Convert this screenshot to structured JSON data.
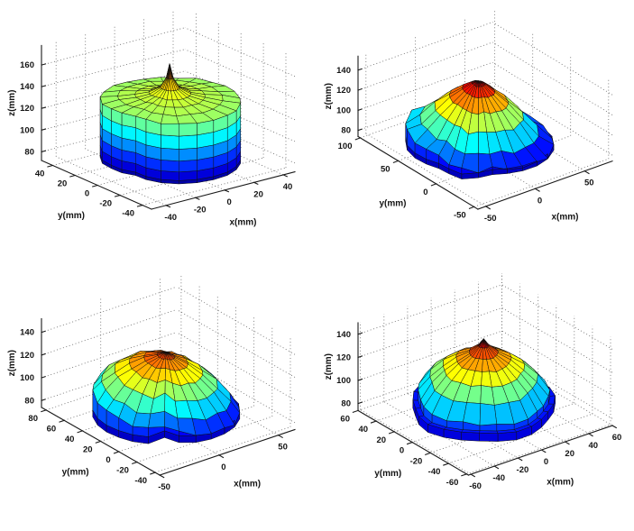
{
  "figure": {
    "background": "#ffffff",
    "grid": {
      "rows": 2,
      "cols": 2
    },
    "mesh_line_color": "#101010",
    "grid_line_color": "#6e6e6e",
    "axis_color": "#1a1a1a",
    "text_color": "#141414",
    "colormap_name": "jet"
  },
  "chart_data": [
    {
      "type": "surface3d",
      "position": "top-left",
      "title": "",
      "xlabel": "x(mm)",
      "ylabel": "y(mm)",
      "zlabel": "z(mm)",
      "xticks": [
        -40,
        -20,
        0,
        20,
        40
      ],
      "yticks": [
        40,
        20,
        0,
        -20,
        -40
      ],
      "zticks": [
        80,
        100,
        120,
        140,
        160
      ],
      "xlim": [
        -50,
        48
      ],
      "ylim": [
        -48,
        50
      ],
      "zlim": [
        72,
        178
      ],
      "view": {
        "azimuth": -37.5,
        "elevation": 30
      },
      "colormap": "jet",
      "color_range": [
        74,
        186
      ],
      "surface": {
        "shape": "tall cylindrical blob with central spike",
        "center": [
          0,
          1
        ],
        "radius": 38,
        "spokes": 24,
        "phase": 0,
        "radius_profile": [
          1.0,
          1.0,
          0.99,
          0.97,
          0.97,
          0.98,
          1.0,
          1.01,
          1.02,
          1.0,
          0.97,
          0.9,
          0.86,
          0.8,
          0.88,
          0.95,
          1.0,
          1.02,
          1.03,
          1.04,
          1.03,
          1.02,
          1.01,
          1.0
        ],
        "rings": [
          [
            0,
            166
          ],
          [
            0.05,
            153
          ],
          [
            0.14,
            144
          ],
          [
            0.3,
            139
          ],
          [
            0.5,
            136.5
          ],
          [
            0.75,
            134.5
          ],
          [
            1,
            132
          ]
        ],
        "tilt": [
          0,
          0
        ],
        "jitter": 0.7,
        "skirt": [
          [
            121,
            1
          ],
          [
            109,
            1
          ],
          [
            98,
            1
          ],
          [
            88,
            1
          ],
          [
            80,
            1
          ],
          [
            77,
            1
          ]
        ]
      }
    },
    {
      "type": "surface3d",
      "position": "top-right",
      "title": "",
      "xlabel": "x(mm)",
      "ylabel": "y(mm)",
      "zlabel": "z(mm)",
      "xticks": [
        -50,
        0,
        50
      ],
      "yticks": [
        100,
        50,
        0,
        -50
      ],
      "zticks": [
        80,
        100,
        120,
        140
      ],
      "xlim": [
        -58,
        78
      ],
      "ylim": [
        -55,
        103
      ],
      "zlim": [
        74,
        154
      ],
      "view": {
        "azimuth": -37.5,
        "elevation": 30
      },
      "colormap": "jet",
      "color_range": [
        76,
        152
      ],
      "surface": {
        "shape": "irregular flattened dome, red core offset toward back",
        "center": [
          0,
          20
        ],
        "radius": 56,
        "spokes": 24,
        "phase": 0.13,
        "radius_profile": [
          1.05,
          1.02,
          0.96,
          0.9,
          0.93,
          1.0,
          1.06,
          1.1,
          1.08,
          1.02,
          0.94,
          0.86,
          0.8,
          0.84,
          0.92,
          0.85,
          0.78,
          0.83,
          0.9,
          0.97,
          1.03,
          1.08,
          1.09,
          1.07
        ],
        "rings": [
          [
            0,
            147
          ],
          [
            0.09,
            144
          ],
          [
            0.22,
            137
          ],
          [
            0.4,
            127
          ],
          [
            0.6,
            114
          ],
          [
            0.8,
            99
          ],
          [
            1,
            89
          ]
        ],
        "tilt": [
          -3,
          8
        ],
        "jitter": 2.4,
        "skirt": [
          [
            83,
            1
          ],
          [
            78,
            1
          ]
        ]
      }
    },
    {
      "type": "surface3d",
      "position": "bottom-left",
      "title": "",
      "xlabel": "x(mm)",
      "ylabel": "y(mm)",
      "zlabel": "z(mm)",
      "xticks": [
        -50,
        0,
        50
      ],
      "yticks": [
        80,
        60,
        40,
        20,
        0,
        -20,
        -40
      ],
      "zticks": [
        80,
        100,
        120,
        140
      ],
      "xlim": [
        -50,
        64
      ],
      "ylim": [
        -45,
        85
      ],
      "zlim": [
        74,
        152
      ],
      "view": {
        "azimuth": -37.5,
        "elevation": 30
      },
      "colormap": "jet",
      "color_range": [
        76,
        148
      ],
      "surface": {
        "shape": "flat pancake tilted up at back with front cleft",
        "center": [
          2,
          16
        ],
        "radius": 48,
        "spokes": 24,
        "phase": 0.1,
        "radius_profile": [
          1.02,
          1.0,
          0.97,
          0.95,
          0.96,
          1.0,
          1.04,
          1.06,
          1.05,
          1.02,
          0.98,
          0.94,
          0.9,
          0.88,
          0.85,
          0.62,
          0.8,
          0.88,
          0.92,
          0.96,
          1.0,
          1.03,
          1.04,
          1.03
        ],
        "rings": [
          [
            0,
            136
          ],
          [
            0.12,
            132.5
          ],
          [
            0.3,
            128
          ],
          [
            0.5,
            121
          ],
          [
            0.7,
            112
          ],
          [
            0.88,
            101
          ],
          [
            1,
            91
          ]
        ],
        "tilt": [
          -5,
          8
        ],
        "jitter": 1.8,
        "skirt": [
          [
            84,
            1
          ],
          [
            78,
            1
          ]
        ]
      }
    },
    {
      "type": "surface3d",
      "position": "bottom-right",
      "title": "",
      "xlabel": "x(mm)",
      "ylabel": "y(mm)",
      "zlabel": "z(mm)",
      "xticks": [
        -60,
        -40,
        -20,
        0,
        20,
        40,
        60
      ],
      "yticks": [
        60,
        40,
        20,
        0,
        -20,
        -40,
        -60
      ],
      "zticks": [
        80,
        100,
        120,
        140
      ],
      "xlim": [
        -62,
        60
      ],
      "ylim": [
        -62,
        60
      ],
      "zlim": [
        74,
        150
      ],
      "view": {
        "azimuth": -37.5,
        "elevation": 30
      },
      "colormap": "jet",
      "color_range": [
        76,
        146
      ],
      "surface": {
        "shape": "rounded dome with stepped base skirt",
        "center": [
          0,
          2
        ],
        "radius": 45,
        "spokes": 24,
        "phase": 0.07,
        "radius_profile": [
          1.0,
          0.97,
          0.99,
          1.03,
          1.0,
          0.96,
          0.99,
          1.04,
          1.02,
          0.98,
          0.96,
          1.0,
          1.03,
          1.0,
          0.97,
          0.95,
          0.98,
          1.02,
          1.0,
          0.96,
          0.94,
          0.97,
          1.01,
          1.02
        ],
        "rings": [
          [
            0,
            141
          ],
          [
            0.08,
            135
          ],
          [
            0.22,
            129
          ],
          [
            0.42,
            123.5
          ],
          [
            0.62,
            116
          ],
          [
            0.82,
            106
          ],
          [
            1,
            93
          ]
        ],
        "tilt": [
          0,
          2
        ],
        "jitter": 1.1,
        "skirt": [
          [
            86,
            1
          ],
          [
            86,
            1.08
          ],
          [
            79,
            1.08
          ]
        ]
      }
    }
  ]
}
